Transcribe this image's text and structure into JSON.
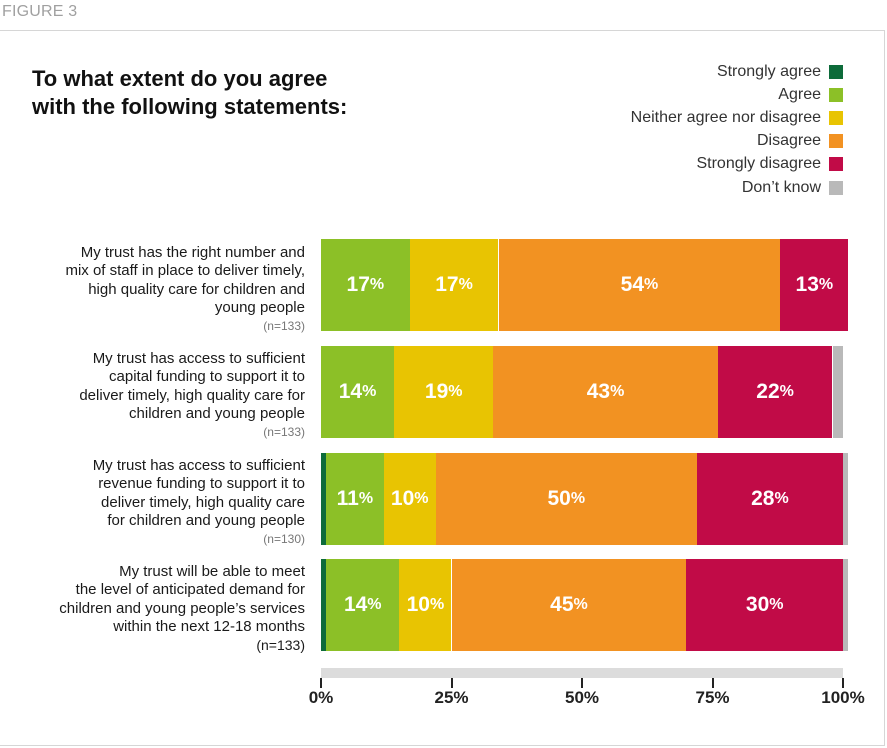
{
  "figure_label": "FIGURE 3",
  "chart_data": {
    "type": "bar",
    "orientation": "horizontal",
    "stacked": true,
    "title": "To what extent do you agree\nwith the following statements:",
    "legend_position": "top-right",
    "xlim": [
      0,
      100
    ],
    "xticks": [
      "0%",
      "25%",
      "50%",
      "75%",
      "100%"
    ],
    "series": [
      {
        "name": "Strongly agree",
        "color": "#0d6b3a",
        "values": [
          0,
          0,
          1,
          1
        ]
      },
      {
        "name": "Agree",
        "color": "#8cc027",
        "values": [
          17,
          14,
          11,
          14
        ]
      },
      {
        "name": "Neither agree nor disagree",
        "color": "#e8c402",
        "values": [
          17,
          19,
          10,
          10
        ]
      },
      {
        "name": "Disagree",
        "color": "#f29222",
        "values": [
          54,
          43,
          50,
          45
        ]
      },
      {
        "name": "Strongly disagree",
        "color": "#c10b47",
        "values": [
          13,
          22,
          28,
          30
        ]
      },
      {
        "name": "Don’t know",
        "color": "#b9b9b9",
        "values": [
          0,
          2,
          1,
          1
        ]
      }
    ],
    "categories": [
      {
        "label": "My trust has the right number and\nmix of staff in place to deliver timely,\nhigh quality care for children and\nyoung people",
        "n": "(n=133)"
      },
      {
        "label": "My trust has access to sufficient\ncapital funding to support it to\ndeliver timely, high quality care for\nchildren and young people",
        "n": "(n=133)"
      },
      {
        "label": "My trust has access to sufficient\nrevenue funding to support it to\ndeliver timely, high quality care\nfor children and young people",
        "n": "(n=130)"
      },
      {
        "label": "My trust will be able to meet\nthe level of anticipated demand for\nchildren and young people’s services\nwithin the next 12-18 months",
        "n": "(n=133)"
      }
    ],
    "data_labels": [
      [
        null,
        "17",
        "17",
        "54",
        "13",
        null
      ],
      [
        null,
        "14",
        "19",
        "43",
        "22",
        null
      ],
      [
        null,
        "11",
        "10",
        "50",
        "28",
        null
      ],
      [
        null,
        "14",
        "10",
        "45",
        "30",
        null
      ]
    ],
    "label_suffix": "%"
  }
}
